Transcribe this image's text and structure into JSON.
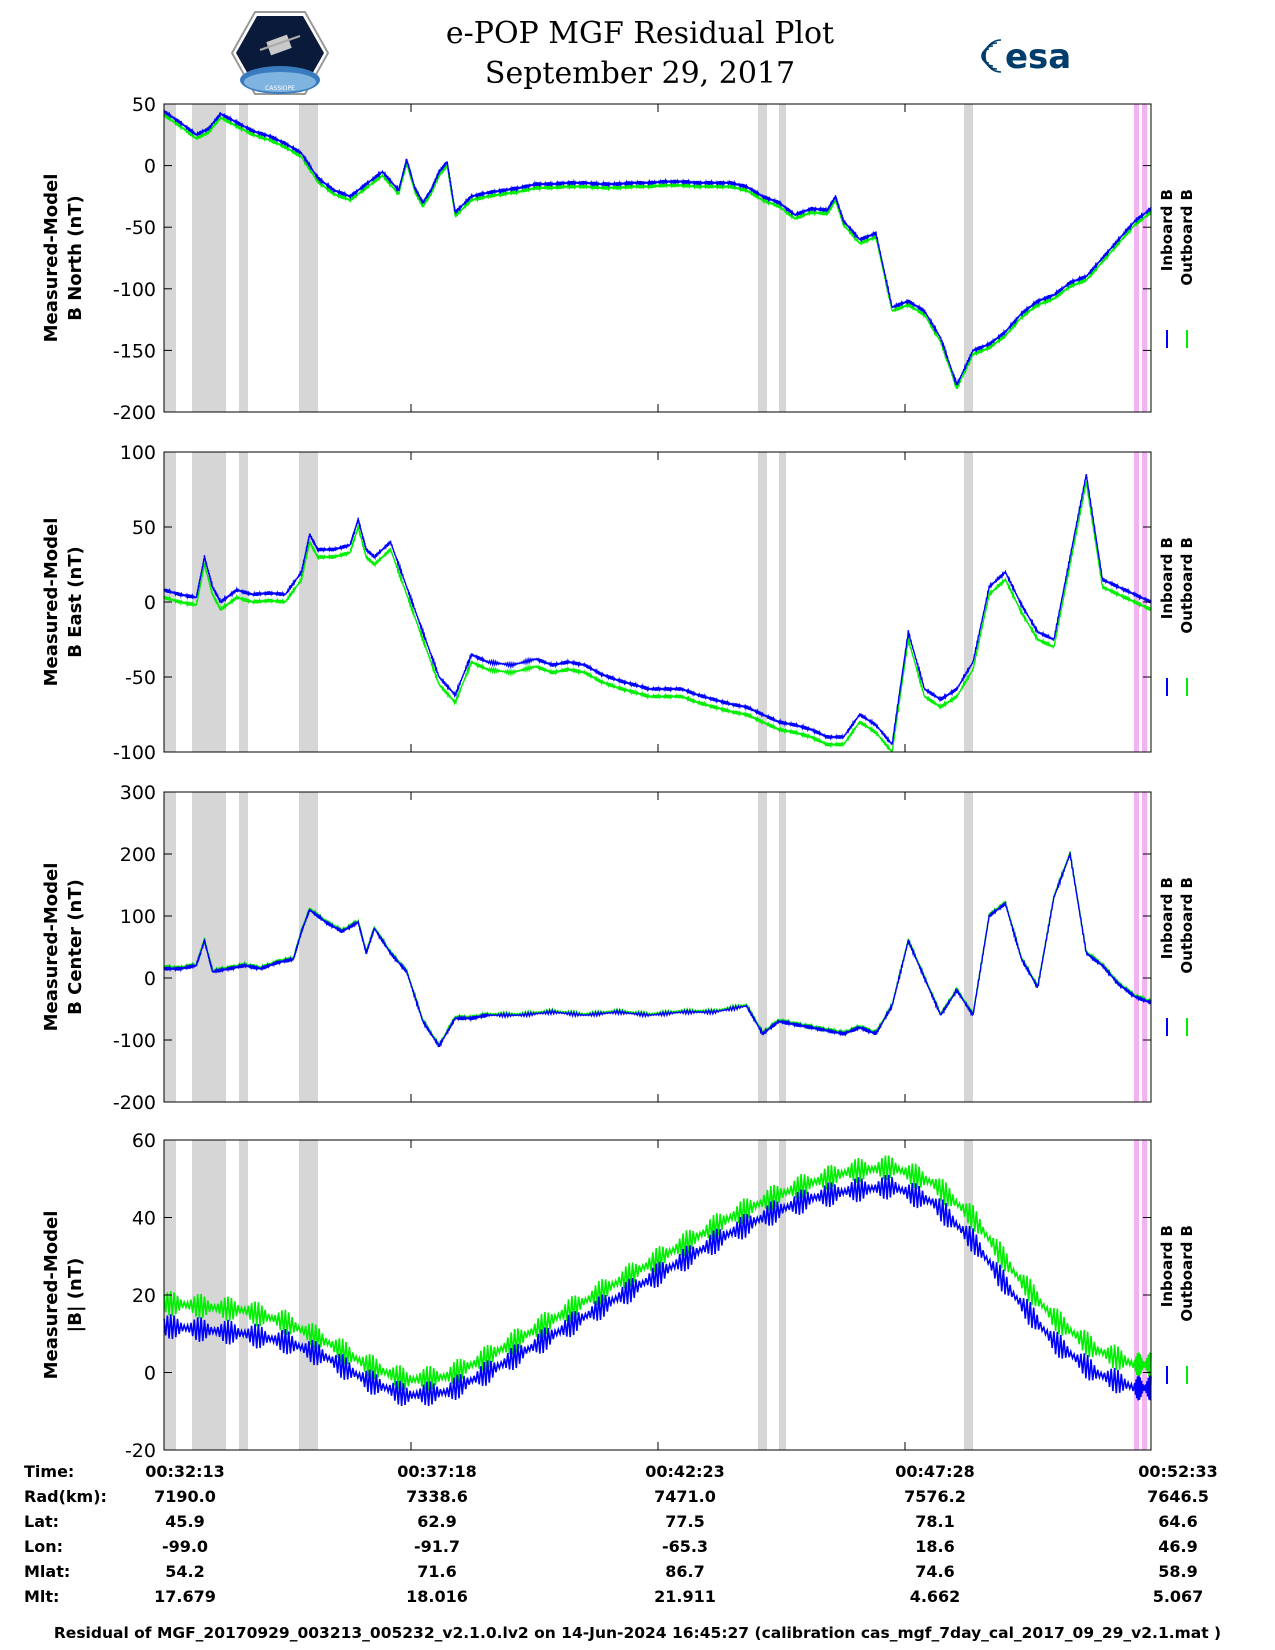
{
  "title": {
    "line1": "e-POP MGF Residual Plot",
    "line2": "September 29, 2017"
  },
  "logos": {
    "left": "CASSIOPE",
    "right": "esa"
  },
  "colors": {
    "inboard": "#0000ff",
    "outboard": "#00ee00",
    "gap": "#d6d6d6",
    "gap_pink": "#f3b3f3"
  },
  "chart_data": [
    {
      "type": "line",
      "ylabel": "Measured-Model",
      "ylabel2": "B North (nT)",
      "ylim": [
        -200,
        50
      ],
      "yticks": [
        "50",
        "0",
        "-50",
        "-100",
        "-150",
        "-200"
      ],
      "ytick_values": [
        50,
        0,
        -50,
        -100,
        -150,
        -200
      ],
      "legend": [
        "Inboard B",
        "Outboard B"
      ],
      "xlim": [
        0,
        1220
      ],
      "series": [
        {
          "name": "Inboard B",
          "x": [
            0,
            20,
            40,
            55,
            70,
            90,
            110,
            130,
            150,
            170,
            190,
            210,
            230,
            250,
            270,
            290,
            300,
            310,
            320,
            330,
            340,
            350,
            360,
            380,
            400,
            420,
            440,
            460,
            480,
            500,
            520,
            540,
            560,
            580,
            600,
            620,
            640,
            660,
            680,
            700,
            720,
            740,
            760,
            780,
            800,
            820,
            830,
            840,
            860,
            880,
            900,
            920,
            940,
            960,
            980,
            1000,
            1020,
            1040,
            1060,
            1080,
            1100,
            1120,
            1140,
            1160,
            1180,
            1200,
            1220
          ],
          "y": [
            44,
            35,
            25,
            30,
            42,
            35,
            28,
            24,
            18,
            10,
            -10,
            -20,
            -25,
            -15,
            -5,
            -20,
            5,
            -18,
            -30,
            -20,
            -5,
            3,
            -38,
            -25,
            -22,
            -20,
            -18,
            -15,
            -15,
            -14,
            -14,
            -15,
            -15,
            -14,
            -14,
            -13,
            -13,
            -14,
            -14,
            -14,
            -17,
            -25,
            -30,
            -40,
            -35,
            -36,
            -25,
            -45,
            -60,
            -55,
            -115,
            -110,
            -118,
            -140,
            -178,
            -150,
            -145,
            -135,
            -120,
            -110,
            -105,
            -95,
            -90,
            -75,
            -60,
            -45,
            -35
          ]
        },
        {
          "name": "Outboard B",
          "x": [
            0,
            20,
            40,
            55,
            70,
            90,
            110,
            130,
            150,
            170,
            190,
            210,
            230,
            250,
            270,
            290,
            300,
            310,
            320,
            330,
            340,
            350,
            360,
            380,
            400,
            420,
            440,
            460,
            480,
            500,
            520,
            540,
            560,
            580,
            600,
            620,
            640,
            660,
            680,
            700,
            720,
            740,
            760,
            780,
            800,
            820,
            830,
            840,
            860,
            880,
            900,
            920,
            940,
            960,
            980,
            1000,
            1020,
            1040,
            1060,
            1080,
            1100,
            1120,
            1140,
            1160,
            1180,
            1200,
            1220
          ],
          "y": [
            41,
            32,
            22,
            27,
            39,
            32,
            25,
            21,
            15,
            7,
            -13,
            -23,
            -28,
            -18,
            -8,
            -23,
            2,
            -21,
            -33,
            -23,
            -8,
            0,
            -41,
            -28,
            -25,
            -23,
            -21,
            -18,
            -18,
            -17,
            -17,
            -18,
            -18,
            -17,
            -17,
            -16,
            -16,
            -17,
            -17,
            -17,
            -20,
            -28,
            -33,
            -43,
            -38,
            -39,
            -28,
            -48,
            -63,
            -58,
            -118,
            -113,
            -121,
            -143,
            -181,
            -153,
            -148,
            -138,
            -123,
            -113,
            -108,
            -98,
            -93,
            -78,
            -63,
            -48,
            -38
          ]
        }
      ]
    },
    {
      "type": "line",
      "ylabel": "Measured-Model",
      "ylabel2": "B East (nT)",
      "ylim": [
        -100,
        100
      ],
      "yticks": [
        "100",
        "50",
        "0",
        "-50",
        "-100"
      ],
      "ytick_values": [
        100,
        50,
        0,
        -50,
        -100
      ],
      "legend": [
        "Inboard B",
        "Outboard B"
      ],
      "xlim": [
        0,
        1220
      ],
      "series": [
        {
          "name": "Inboard B",
          "x": [
            0,
            20,
            40,
            50,
            60,
            70,
            90,
            110,
            130,
            150,
            170,
            180,
            190,
            210,
            230,
            240,
            250,
            260,
            280,
            300,
            320,
            340,
            360,
            380,
            400,
            430,
            460,
            480,
            500,
            520,
            540,
            560,
            580,
            600,
            620,
            640,
            660,
            680,
            700,
            720,
            740,
            760,
            780,
            800,
            820,
            840,
            860,
            880,
            900,
            920,
            940,
            960,
            980,
            1000,
            1020,
            1040,
            1060,
            1080,
            1100,
            1120,
            1140,
            1160,
            1180,
            1200,
            1220
          ],
          "y": [
            8,
            5,
            3,
            30,
            10,
            0,
            8,
            5,
            6,
            5,
            20,
            45,
            35,
            35,
            38,
            55,
            35,
            30,
            40,
            10,
            -20,
            -50,
            -62,
            -35,
            -40,
            -42,
            -38,
            -42,
            -40,
            -42,
            -48,
            -52,
            -55,
            -58,
            -58,
            -58,
            -62,
            -65,
            -68,
            -70,
            -75,
            -80,
            -82,
            -85,
            -90,
            -90,
            -75,
            -82,
            -95,
            -20,
            -58,
            -65,
            -58,
            -40,
            10,
            20,
            -2,
            -20,
            -25,
            30,
            85,
            15,
            10,
            5,
            0
          ]
        },
        {
          "name": "Outboard B",
          "x": [
            0,
            20,
            40,
            50,
            60,
            70,
            90,
            110,
            130,
            150,
            170,
            180,
            190,
            210,
            230,
            240,
            250,
            260,
            280,
            300,
            320,
            340,
            360,
            380,
            400,
            430,
            460,
            480,
            500,
            520,
            540,
            560,
            580,
            600,
            620,
            640,
            660,
            680,
            700,
            720,
            740,
            760,
            780,
            800,
            820,
            840,
            860,
            880,
            900,
            920,
            940,
            960,
            980,
            1000,
            1020,
            1040,
            1060,
            1080,
            1100,
            1120,
            1140,
            1160,
            1180,
            1200,
            1220
          ],
          "y": [
            3,
            0,
            -2,
            25,
            5,
            -5,
            3,
            0,
            1,
            0,
            15,
            40,
            30,
            30,
            33,
            50,
            30,
            25,
            35,
            5,
            -25,
            -55,
            -67,
            -40,
            -45,
            -47,
            -43,
            -47,
            -45,
            -47,
            -53,
            -57,
            -60,
            -63,
            -63,
            -63,
            -67,
            -70,
            -73,
            -75,
            -80,
            -85,
            -87,
            -90,
            -95,
            -95,
            -80,
            -87,
            -100,
            -25,
            -63,
            -70,
            -63,
            -45,
            5,
            15,
            -7,
            -25,
            -30,
            25,
            80,
            10,
            5,
            0,
            -5
          ]
        }
      ]
    },
    {
      "type": "line",
      "ylabel": "Measured-Model",
      "ylabel2": "B Center (nT)",
      "ylim": [
        -200,
        300
      ],
      "yticks": [
        "300",
        "200",
        "100",
        "0",
        "-100",
        "-200"
      ],
      "ytick_values": [
        300,
        200,
        100,
        0,
        -100,
        -200
      ],
      "legend": [
        "Inboard B",
        "Outboard B"
      ],
      "xlim": [
        0,
        1220
      ],
      "series": [
        {
          "name": "Inboard B",
          "x": [
            0,
            20,
            40,
            50,
            60,
            80,
            100,
            120,
            140,
            160,
            170,
            180,
            200,
            220,
            240,
            250,
            260,
            280,
            300,
            320,
            340,
            360,
            380,
            400,
            440,
            480,
            520,
            560,
            600,
            640,
            680,
            720,
            740,
            760,
            780,
            800,
            820,
            840,
            860,
            880,
            900,
            920,
            940,
            960,
            980,
            1000,
            1020,
            1040,
            1060,
            1080,
            1100,
            1120,
            1140,
            1160,
            1180,
            1200,
            1220
          ],
          "y": [
            15,
            15,
            20,
            60,
            10,
            15,
            20,
            15,
            25,
            30,
            75,
            110,
            90,
            75,
            90,
            40,
            80,
            40,
            10,
            -70,
            -110,
            -65,
            -65,
            -60,
            -60,
            -55,
            -60,
            -55,
            -60,
            -55,
            -55,
            -45,
            -90,
            -70,
            -75,
            -80,
            -85,
            -90,
            -80,
            -90,
            -45,
            60,
            0,
            -60,
            -20,
            -60,
            100,
            120,
            30,
            -15,
            130,
            200,
            40,
            20,
            -10,
            -30,
            -40
          ]
        },
        {
          "name": "Outboard B",
          "x": [
            0,
            20,
            40,
            50,
            60,
            80,
            100,
            120,
            140,
            160,
            170,
            180,
            200,
            220,
            240,
            250,
            260,
            280,
            300,
            320,
            340,
            360,
            380,
            400,
            440,
            480,
            520,
            560,
            600,
            640,
            680,
            720,
            740,
            760,
            780,
            800,
            820,
            840,
            860,
            880,
            900,
            920,
            940,
            960,
            980,
            1000,
            1020,
            1040,
            1060,
            1080,
            1100,
            1120,
            1140,
            1160,
            1180,
            1200,
            1220
          ],
          "y": [
            18,
            17,
            22,
            62,
            12,
            17,
            22,
            17,
            27,
            32,
            77,
            112,
            92,
            77,
            92,
            42,
            82,
            42,
            12,
            -68,
            -108,
            -63,
            -63,
            -58,
            -58,
            -53,
            -58,
            -53,
            -58,
            -53,
            -53,
            -43,
            -88,
            -68,
            -73,
            -78,
            -83,
            -88,
            -78,
            -88,
            -43,
            62,
            2,
            -58,
            -18,
            -58,
            102,
            122,
            32,
            -13,
            132,
            202,
            42,
            22,
            -8,
            -28,
            -38
          ]
        }
      ]
    },
    {
      "type": "line",
      "ylabel": "Measured-Model",
      "ylabel2": "|B| (nT)",
      "ylim": [
        -20,
        60
      ],
      "yticks": [
        "60",
        "40",
        "20",
        "0",
        "-20"
      ],
      "ytick_values": [
        60,
        40,
        20,
        0,
        -20
      ],
      "legend": [
        "Inboard B",
        "Outboard B"
      ],
      "xlim": [
        0,
        1220
      ],
      "series": [
        {
          "name": "Inboard B",
          "x": [
            0,
            50,
            100,
            150,
            200,
            250,
            300,
            350,
            400,
            450,
            500,
            550,
            600,
            650,
            700,
            750,
            800,
            850,
            900,
            950,
            1000,
            1050,
            1100,
            1150,
            1200,
            1220
          ],
          "y": [
            12,
            11,
            10,
            8,
            4,
            -2,
            -6,
            -5,
            0,
            6,
            12,
            18,
            24,
            30,
            36,
            41,
            45,
            47,
            48,
            44,
            34,
            20,
            8,
            0,
            -4,
            -4
          ]
        },
        {
          "name": "Outboard B",
          "x": [
            0,
            50,
            100,
            150,
            200,
            250,
            300,
            350,
            400,
            450,
            500,
            550,
            600,
            650,
            700,
            750,
            800,
            850,
            900,
            950,
            1000,
            1050,
            1100,
            1150,
            1200,
            1220
          ],
          "y": [
            18,
            17,
            16,
            13,
            8,
            2,
            -2,
            -1,
            4,
            10,
            16,
            22,
            28,
            34,
            40,
            45,
            49,
            52,
            53,
            49,
            40,
            26,
            14,
            6,
            2,
            2
          ]
        }
      ]
    }
  ],
  "ephemeris": {
    "rows": [
      {
        "label": "Time:",
        "values": [
          "00:32:13",
          "00:37:18",
          "00:42:23",
          "00:47:28",
          "00:52:33"
        ]
      },
      {
        "label": "Rad(km):",
        "values": [
          "7190.0",
          "7338.6",
          "7471.0",
          "7576.2",
          "7646.5"
        ]
      },
      {
        "label": "Lat:",
        "values": [
          "45.9",
          "62.9",
          "77.5",
          "78.1",
          "64.6"
        ]
      },
      {
        "label": "Lon:",
        "values": [
          "-99.0",
          "-91.7",
          "-65.3",
          "18.6",
          "46.9"
        ]
      },
      {
        "label": "Mlat:",
        "values": [
          "54.2",
          "71.6",
          "86.7",
          "74.6",
          "58.9"
        ]
      },
      {
        "label": "Mlt:",
        "values": [
          "17.679",
          "18.016",
          "21.911",
          "4.662",
          "5.067"
        ]
      }
    ]
  },
  "footer": "Residual of MGF_20170929_003213_005232_v2.1.0.lv2 on 14-Jun-2024 16:45:27 (calibration cas_mgf_7day_cal_2017_09_29_v2.1.mat )"
}
